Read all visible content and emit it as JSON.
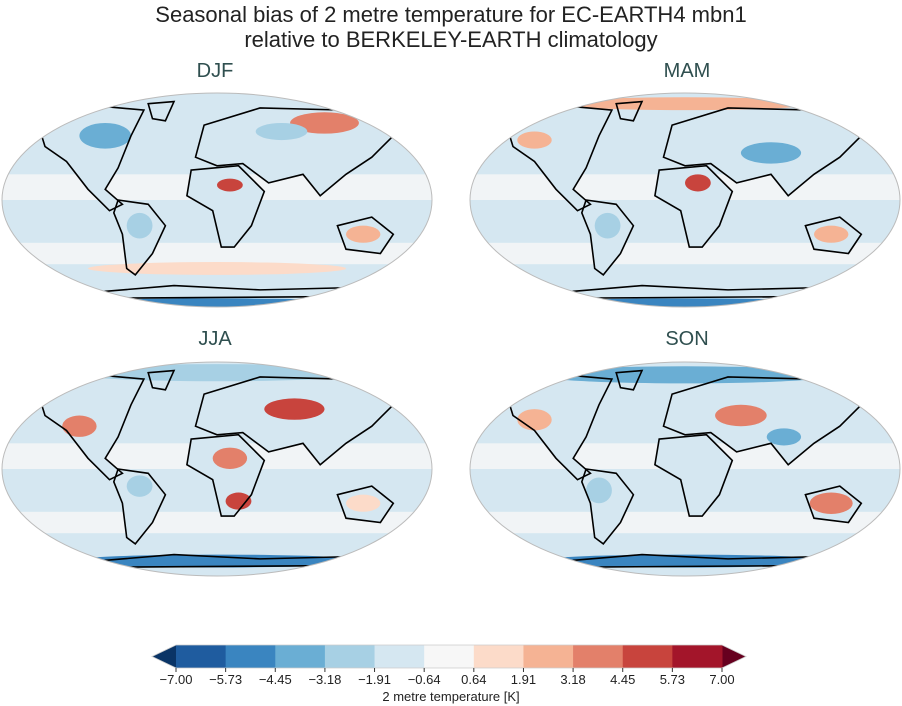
{
  "figure": {
    "title_line1": "Seasonal bias of 2 metre temperature for EC-EARTH4 mbn1",
    "title_line2": "relative to BERKELEY-EARTH climatology"
  },
  "panels": [
    {
      "label": "DJF"
    },
    {
      "label": "MAM"
    },
    {
      "label": "JJA"
    },
    {
      "label": "SON"
    }
  ],
  "colorbar": {
    "label": "2 metre temperature [K]",
    "ticks": [
      "−7.00",
      "−5.73",
      "−4.45",
      "−3.18",
      "−1.91",
      "−0.64",
      "0.64",
      "1.91",
      "3.18",
      "4.45",
      "5.73",
      "7.00"
    ],
    "colors": [
      "#1f5c9f",
      "#3a85c0",
      "#6aaed4",
      "#a7d0e4",
      "#d5e7f1",
      "#f7f7f7",
      "#fcdbc9",
      "#f5b394",
      "#e3806a",
      "#c8443d",
      "#a3152a"
    ],
    "under_color": "#0a3466",
    "over_color": "#67001f",
    "extend": "both"
  }
}
